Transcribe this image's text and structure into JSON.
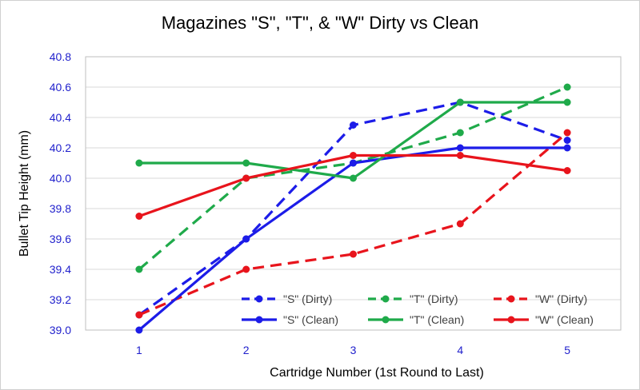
{
  "chart_data": {
    "type": "line",
    "title": "Magazines \"S\", \"T\", & \"W\" Dirty vs Clean",
    "xlabel": "Cartridge Number (1st Round to Last)",
    "ylabel": "Bullet Tip Height (mm)",
    "x": [
      1,
      2,
      3,
      4,
      5
    ],
    "ylim": [
      39.0,
      40.8
    ],
    "yticks": [
      "39.0",
      "39.2",
      "39.4",
      "39.6",
      "39.8",
      "40.0",
      "40.2",
      "40.4",
      "40.6",
      "40.8"
    ],
    "xticks": [
      "1",
      "2",
      "3",
      "4",
      "5"
    ],
    "grid": "horizontal",
    "legend_position": "bottom-right",
    "series": [
      {
        "name": "\"S\" (Dirty)",
        "color": "#1c1ce8",
        "style": "dashed",
        "values": [
          39.1,
          39.6,
          40.35,
          40.5,
          40.25
        ]
      },
      {
        "name": "\"T\" (Dirty)",
        "color": "#1faa4a",
        "style": "dashed",
        "values": [
          39.4,
          40.0,
          40.1,
          40.3,
          40.6
        ]
      },
      {
        "name": "\"W\" (Dirty)",
        "color": "#e8141c",
        "style": "dashed",
        "values": [
          39.1,
          39.4,
          39.5,
          39.7,
          40.3
        ]
      },
      {
        "name": "\"S\" (Clean)",
        "color": "#1c1ce8",
        "style": "solid",
        "values": [
          39.0,
          39.6,
          40.1,
          40.2,
          40.2
        ]
      },
      {
        "name": "\"T\" (Clean)",
        "color": "#1faa4a",
        "style": "solid",
        "values": [
          40.1,
          40.1,
          40.0,
          40.5,
          40.5
        ]
      },
      {
        "name": "\"W\" (Clean)",
        "color": "#e8141c",
        "style": "solid",
        "values": [
          39.75,
          40.0,
          40.15,
          40.15,
          40.05
        ]
      }
    ]
  }
}
